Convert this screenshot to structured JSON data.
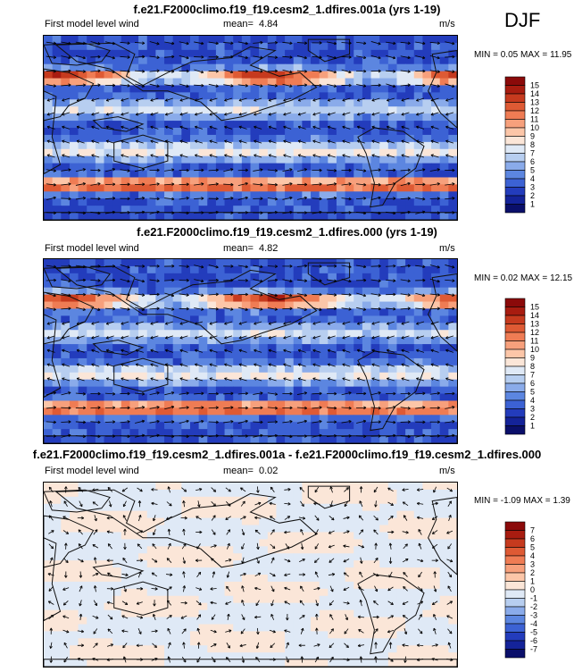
{
  "season": "DJF",
  "panels": [
    {
      "title": "f.e21.F2000climo.f19_f19.cesm2_1.dfires.001a (yrs 1-19)",
      "left_label": "First model level wind",
      "mean_label": "mean=",
      "mean_value": "4.84",
      "units": "m/s",
      "min_label": "MIN =",
      "min_value": "0.05",
      "max_label": "MAX =",
      "max_value": "11.95",
      "colorbar": {
        "levels": [
          "15",
          "14",
          "13",
          "12",
          "11",
          "10",
          "9",
          "8",
          "7",
          "6",
          "5",
          "4",
          "3",
          "2",
          "1"
        ],
        "colors": [
          "#8b0a0a",
          "#a81c10",
          "#c63a1e",
          "#de5a34",
          "#ef7c54",
          "#f7a07c",
          "#fcc6a8",
          "#fbe6d8",
          "#dfe9f6",
          "#b7cef0",
          "#8aabea",
          "#5c86e0",
          "#3c62d4",
          "#233cbc",
          "#142399",
          "#0a0f6a"
        ]
      }
    },
    {
      "title": "f.e21.F2000climo.f19_f19.cesm2_1.dfires.000 (yrs 1-19)",
      "left_label": "First model level wind",
      "mean_label": "mean=",
      "mean_value": "4.82",
      "units": "m/s",
      "min_label": "MIN =",
      "min_value": "0.02",
      "max_label": "MAX =",
      "max_value": "12.15",
      "colorbar": {
        "levels": [
          "15",
          "14",
          "13",
          "12",
          "11",
          "10",
          "9",
          "8",
          "7",
          "6",
          "5",
          "4",
          "3",
          "2",
          "1"
        ],
        "colors": [
          "#8b0a0a",
          "#a81c10",
          "#c63a1e",
          "#de5a34",
          "#ef7c54",
          "#f7a07c",
          "#fcc6a8",
          "#fbe6d8",
          "#dfe9f6",
          "#b7cef0",
          "#8aabea",
          "#5c86e0",
          "#3c62d4",
          "#233cbc",
          "#142399",
          "#0a0f6a"
        ]
      }
    },
    {
      "title": "f.e21.F2000climo.f19_f19.cesm2_1.dfires.001a - f.e21.F2000climo.f19_f19.cesm2_1.dfires.000",
      "left_label": "First model level wind",
      "mean_label": "mean=",
      "mean_value": "0.02",
      "units": "m/s",
      "min_label": "MIN =",
      "min_value": "-1.09",
      "max_label": "MAX =",
      "max_value": "1.39",
      "colorbar": {
        "levels": [
          "7",
          "6",
          "5",
          "4",
          "3",
          "2",
          "1",
          "0",
          "-1",
          "-2",
          "-3",
          "-4",
          "-5",
          "-6",
          "-7"
        ],
        "colors": [
          "#8b0a0a",
          "#a81c10",
          "#c63a1e",
          "#de5a34",
          "#ef7c54",
          "#f7a07c",
          "#fcc6a8",
          "#fbe6d8",
          "#dfe9f6",
          "#b7cef0",
          "#8aabea",
          "#5c86e0",
          "#3c62d4",
          "#233cbc",
          "#142399",
          "#0a0f6a"
        ]
      }
    }
  ]
}
